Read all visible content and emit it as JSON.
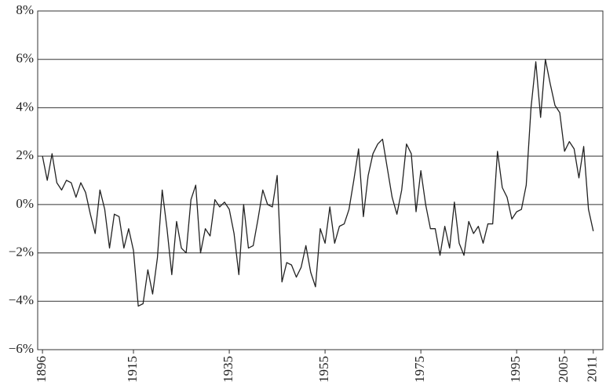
{
  "chart_data": {
    "type": "line",
    "x": [
      1896,
      1897,
      1898,
      1899,
      1900,
      1901,
      1902,
      1903,
      1904,
      1905,
      1906,
      1907,
      1908,
      1909,
      1910,
      1911,
      1912,
      1913,
      1914,
      1915,
      1916,
      1917,
      1918,
      1919,
      1920,
      1921,
      1922,
      1923,
      1924,
      1925,
      1926,
      1927,
      1928,
      1929,
      1930,
      1931,
      1932,
      1933,
      1934,
      1935,
      1936,
      1937,
      1938,
      1939,
      1940,
      1941,
      1942,
      1943,
      1944,
      1945,
      1946,
      1947,
      1948,
      1949,
      1950,
      1951,
      1952,
      1953,
      1954,
      1955,
      1956,
      1957,
      1958,
      1959,
      1960,
      1961,
      1962,
      1963,
      1964,
      1965,
      1966,
      1967,
      1968,
      1969,
      1970,
      1971,
      1972,
      1973,
      1974,
      1975,
      1976,
      1977,
      1978,
      1979,
      1980,
      1981,
      1982,
      1983,
      1984,
      1985,
      1986,
      1987,
      1988,
      1989,
      1990,
      1991,
      1992,
      1993,
      1994,
      1995,
      1996,
      1997,
      1998,
      1999,
      2000,
      2001,
      2002,
      2003,
      2004,
      2005,
      2006,
      2007,
      2008,
      2009,
      2010,
      2011
    ],
    "series": [
      {
        "color": "#222222",
        "values": [
          2.0,
          1.0,
          2.1,
          0.9,
          0.6,
          1.0,
          0.9,
          0.3,
          0.9,
          0.5,
          -0.4,
          -1.2,
          0.6,
          -0.2,
          -1.8,
          -0.4,
          -0.5,
          -1.8,
          -1.0,
          -1.9,
          -4.2,
          -4.1,
          -2.7,
          -3.7,
          -2.2,
          0.6,
          -1.0,
          -2.9,
          -0.7,
          -1.8,
          -2.0,
          0.2,
          0.8,
          -2.0,
          -1.0,
          -1.3,
          0.2,
          -0.1,
          0.1,
          -0.2,
          -1.2,
          -2.9,
          0.0,
          -1.8,
          -1.7,
          -0.6,
          0.6,
          0.0,
          -0.1,
          1.2,
          -3.2,
          -2.4,
          -2.5,
          -3.0,
          -2.6,
          -1.7,
          -2.8,
          -3.4,
          -1.0,
          -1.6,
          -0.1,
          -1.6,
          -0.9,
          -0.8,
          -0.2,
          1.0,
          2.3,
          -0.5,
          1.2,
          2.1,
          2.5,
          2.7,
          1.5,
          0.3,
          -0.4,
          0.6,
          2.5,
          2.1,
          -0.3,
          1.4,
          0.0,
          -1.0,
          -1.0,
          -2.1,
          -0.9,
          -1.8,
          0.1,
          -1.6,
          -2.1,
          -0.7,
          -1.2,
          -0.9,
          -1.6,
          -0.8,
          -0.8,
          2.2,
          0.7,
          0.3,
          -0.6,
          -0.3,
          -0.2,
          0.8,
          4.0,
          5.9,
          3.6,
          6.0,
          5.0,
          4.1,
          3.8,
          2.2,
          2.6,
          2.3,
          1.1,
          2.4,
          -0.2,
          -1.1
        ]
      }
    ],
    "xlim": [
      1895,
      2013
    ],
    "xticks": [
      1896,
      1915,
      1935,
      1955,
      1975,
      1995,
      2005,
      2011
    ],
    "ylim": [
      -6,
      8
    ],
    "yticks": [
      {
        "value": -6,
        "label": "−6%"
      },
      {
        "value": -4,
        "label": "−4%"
      },
      {
        "value": -2,
        "label": "−2%"
      },
      {
        "value": 0,
        "label": "0%"
      },
      {
        "value": 2,
        "label": "2%"
      },
      {
        "value": 4,
        "label": "4%"
      },
      {
        "value": 6,
        "label": "6%"
      },
      {
        "value": 8,
        "label": "8%"
      }
    ],
    "grid": true
  }
}
